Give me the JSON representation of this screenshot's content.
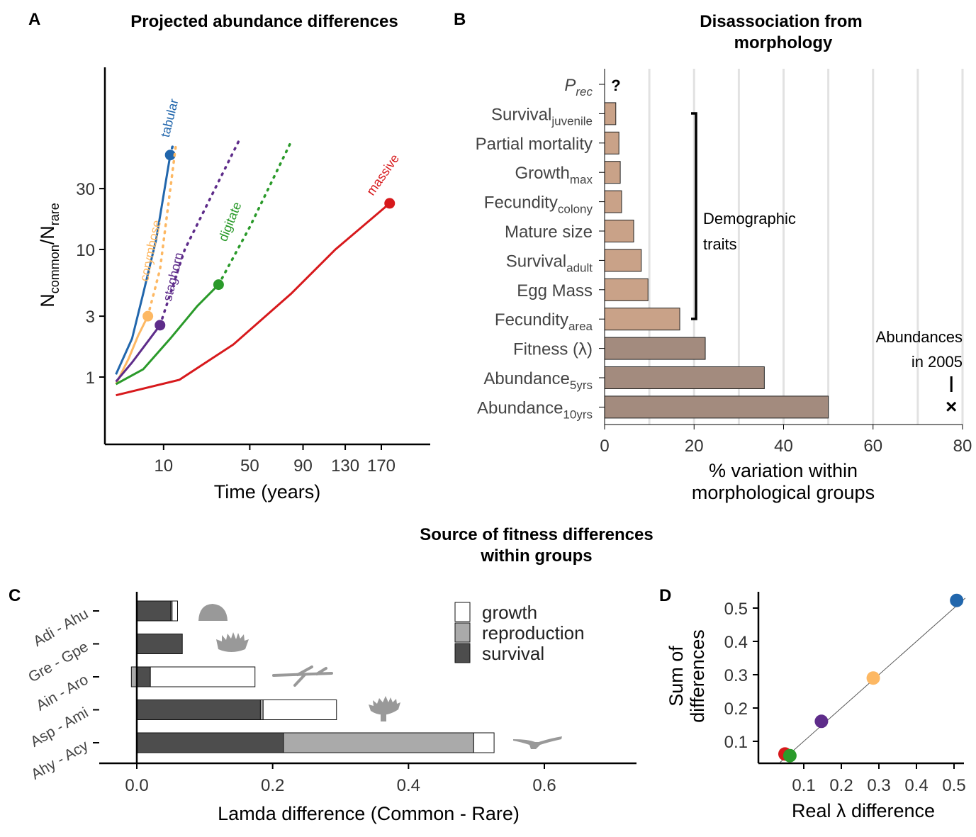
{
  "figure_title": "Source of fitness differences within groups",
  "colors": {
    "tabular": "#2166ac",
    "corymbose": "#fdb863",
    "staghorn": "#5e2c8a",
    "digitate": "#2a9a2a",
    "massive": "#d7191c",
    "demographic_bar": "#c9a288",
    "outcome_bar": "#a38b7e",
    "survival": "#4d4d4d",
    "reproduction": "#aaaaaa",
    "growth": "#ffffff"
  },
  "chart_data": [
    {
      "panel": "A",
      "type": "line",
      "title": "Projected abundance differences",
      "xlabel": "Time (years)",
      "ylabel": "Ncommon/Nrare",
      "ylabel_main": "N",
      "ylabel_sub1": "common",
      "ylabel_sep": "/N",
      "ylabel_sub2": "rare",
      "x_scale": "sqrt",
      "y_scale": "log",
      "xlim": [
        0,
        190
      ],
      "ylim": [
        0.55,
        75
      ],
      "x_ticks": [
        10,
        50,
        90,
        130,
        170
      ],
      "y_ticks": [
        1,
        3,
        10,
        30
      ],
      "series": [
        {
          "name": "tabular",
          "points": [
            [
              1,
              1.05
            ],
            [
              3,
              2.0
            ],
            [
              5,
              4.5
            ],
            [
              8,
              12
            ],
            [
              12,
              55
            ]
          ],
          "end": [
            12,
            55
          ],
          "dotted": [
            [
              12,
              55
            ],
            [
              13,
              68
            ]
          ]
        },
        {
          "name": "corymbose",
          "points": [
            [
              1,
              0.88
            ],
            [
              2.5,
              1.4
            ],
            [
              4,
              2.1
            ],
            [
              6,
              3.0
            ]
          ],
          "end": [
            6,
            3.0
          ],
          "dotted": [
            [
              6,
              3.0
            ],
            [
              9,
              7
            ],
            [
              14,
              70
            ]
          ]
        },
        {
          "name": "staghorn",
          "points": [
            [
              1,
              0.92
            ],
            [
              3,
              1.3
            ],
            [
              6,
              1.9
            ],
            [
              9,
              2.55
            ]
          ],
          "end": [
            9,
            2.55
          ],
          "dotted": [
            [
              9,
              2.55
            ],
            [
              17,
              10
            ],
            [
              43,
              70
            ]
          ]
        },
        {
          "name": "digitate",
          "points": [
            [
              1,
              0.88
            ],
            [
              5,
              1.15
            ],
            [
              12,
              2.0
            ],
            [
              22,
              3.6
            ],
            [
              32,
              5.3
            ]
          ],
          "end": [
            32,
            5.3
          ],
          "dotted": [
            [
              32,
              5.3
            ],
            [
              50,
              15
            ],
            [
              80,
              70
            ]
          ]
        },
        {
          "name": "massive",
          "points": [
            [
              1,
              0.72
            ],
            [
              15,
              0.95
            ],
            [
              40,
              1.8
            ],
            [
              80,
              4.5
            ],
            [
              120,
              10
            ],
            [
              180,
              23
            ]
          ],
          "end": [
            180,
            23
          ],
          "dotted": []
        }
      ]
    },
    {
      "panel": "B",
      "type": "bar",
      "title": "Disassociation from morphology",
      "xlabel": "% variation within morphological groups",
      "xlim": [
        0,
        80
      ],
      "x_ticks": [
        0,
        20,
        40,
        60,
        80
      ],
      "categories": [
        {
          "main": "P",
          "sub": "rec",
          "italic": true,
          "value": null,
          "label": "?",
          "kind": "unknown"
        },
        {
          "main": "Survival",
          "sub": "juvenile",
          "value": 2.5,
          "kind": "demographic"
        },
        {
          "main": "Partial mortality",
          "sub": "",
          "value": 3.2,
          "kind": "demographic"
        },
        {
          "main": "Growth",
          "sub": "max",
          "value": 3.5,
          "kind": "demographic"
        },
        {
          "main": "Fecundity",
          "sub": "colony",
          "value": 3.8,
          "kind": "demographic"
        },
        {
          "main": "Mature size",
          "sub": "",
          "value": 6.5,
          "kind": "demographic"
        },
        {
          "main": "Survival",
          "sub": "adult",
          "value": 8.2,
          "kind": "demographic"
        },
        {
          "main": "Egg Mass",
          "sub": "",
          "value": 9.7,
          "kind": "demographic"
        },
        {
          "main": "Fecundity",
          "sub": "area",
          "value": 16.8,
          "kind": "demographic"
        },
        {
          "main": "Fitness (λ)",
          "sub": "",
          "value": 22.5,
          "kind": "outcome"
        },
        {
          "main": "Abundance",
          "sub": "5yrs",
          "value": 35.7,
          "kind": "outcome"
        },
        {
          "main": "Abundance",
          "sub": "10yrs",
          "value": 50.0,
          "kind": "outcome"
        }
      ],
      "bracket_label_1": "Demographic",
      "bracket_label_2": "traits",
      "reference_label_1": "Abundances",
      "reference_label_2": "in 2005",
      "reference_marker": "×",
      "reference_value": 77.5
    },
    {
      "panel": "C",
      "type": "bar",
      "stacked": true,
      "xlabel": "Lamda difference (Common - Rare)",
      "xlim": [
        -0.05,
        0.73
      ],
      "x_ticks": [
        0.0,
        0.2,
        0.4,
        0.6
      ],
      "x_tick_labels": [
        "0.0",
        "0.2",
        "0.4",
        "0.6"
      ],
      "legend": [
        "growth",
        "reproduction",
        "survival"
      ],
      "categories": [
        "Adi - Ahu",
        "Gre - Gpe",
        "Ain - Aro",
        "Asp - Ami",
        "Ahy - Acy"
      ],
      "series": [
        {
          "name": "survival",
          "values": [
            0.05,
            0.067,
            0.02,
            0.182,
            0.216
          ]
        },
        {
          "name": "reproduction",
          "values": [
            0.002,
            0.0,
            -0.008,
            0.004,
            0.28
          ]
        },
        {
          "name": "growth",
          "values": [
            0.008,
            0.0,
            0.154,
            0.108,
            0.03
          ]
        }
      ]
    },
    {
      "panel": "D",
      "type": "scatter",
      "xlabel": "Real λ difference",
      "ylabel_1": "Sum of",
      "ylabel_2": "differences",
      "xlim": [
        0.037,
        0.53
      ],
      "ylim": [
        0.03,
        0.55
      ],
      "x_ticks": [
        0.1,
        0.2,
        0.3,
        0.4,
        0.5
      ],
      "y_ticks": [
        0.1,
        0.2,
        0.3,
        0.4,
        0.5
      ],
      "tick_labels": [
        "0.1",
        "0.2",
        "0.3",
        "0.4",
        "0.5"
      ],
      "points": [
        {
          "group": "massive",
          "x": 0.05,
          "y": 0.062
        },
        {
          "group": "digitate",
          "x": 0.063,
          "y": 0.057
        },
        {
          "group": "staghorn",
          "x": 0.147,
          "y": 0.16
        },
        {
          "group": "corymbose",
          "x": 0.285,
          "y": 0.29
        },
        {
          "group": "tabular",
          "x": 0.507,
          "y": 0.523
        }
      ]
    }
  ]
}
